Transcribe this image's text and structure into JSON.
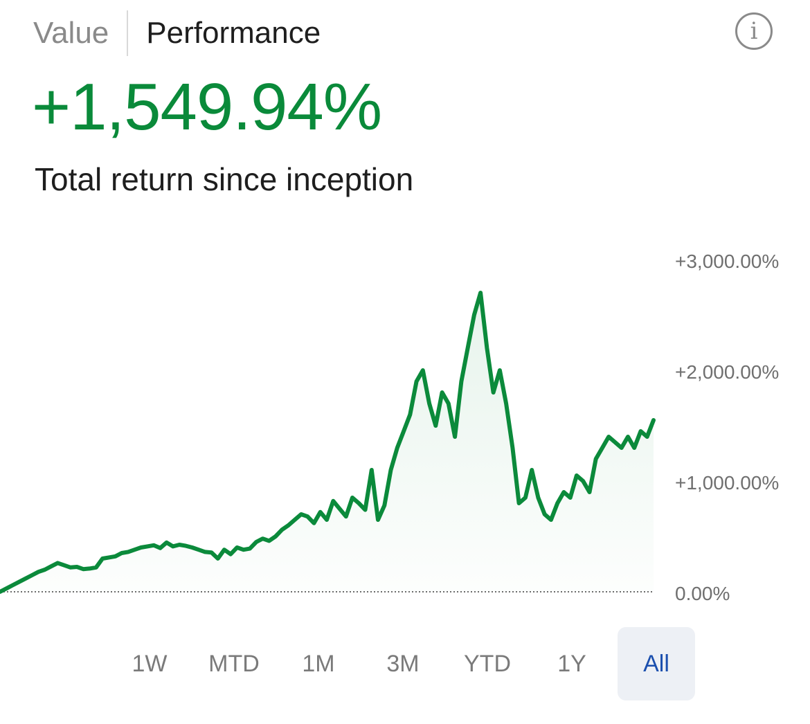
{
  "tabs": {
    "value": "Value",
    "performance": "Performance",
    "active": "Performance"
  },
  "info_icon": {
    "glyph": "i",
    "name": "info-icon"
  },
  "summary": {
    "total_return": "+1,549.94%",
    "label": "Total return since inception"
  },
  "colors": {
    "positive": "#0a8a3a",
    "line": "#0b8a3b",
    "active_range_bg": "#edf0f5",
    "active_range_text": "#1b4fae"
  },
  "ranges": [
    {
      "label": "1W"
    },
    {
      "label": "MTD"
    },
    {
      "label": "1M"
    },
    {
      "label": "3M"
    },
    {
      "label": "YTD"
    },
    {
      "label": "1Y"
    },
    {
      "label": "All"
    }
  ],
  "selected_range": "All",
  "chart_data": {
    "type": "area",
    "title": "",
    "xlabel": "",
    "ylabel": "",
    "ylim": [
      0,
      3000
    ],
    "y_ticks": [
      {
        "value": 3000,
        "label": "+3,000.00%"
      },
      {
        "value": 2000,
        "label": "+2,000.00%"
      },
      {
        "value": 1000,
        "label": "+1,000.00%"
      },
      {
        "value": 0,
        "label": "0.00%"
      }
    ],
    "baseline": 0,
    "grid": false,
    "series": [
      {
        "values": [
          0,
          30,
          60,
          90,
          120,
          150,
          180,
          200,
          230,
          260,
          240,
          220,
          225,
          205,
          210,
          220,
          300,
          310,
          320,
          350,
          360,
          380,
          400,
          410,
          420,
          395,
          445,
          410,
          425,
          415,
          400,
          380,
          360,
          355,
          300,
          380,
          340,
          400,
          380,
          390,
          450,
          480,
          460,
          500,
          560,
          600,
          650,
          700,
          680,
          620,
          720,
          650,
          820,
          750,
          680,
          850,
          800,
          740,
          1100,
          650,
          780,
          1100,
          1300,
          1450,
          1600,
          1900,
          2000,
          1700,
          1500,
          1800,
          1700,
          1400,
          1900,
          2200,
          2500,
          2700,
          2200,
          1800,
          2000,
          1700,
          1300,
          800,
          850,
          1100,
          850,
          700,
          650,
          800,
          900,
          850,
          1050,
          1000,
          900,
          1200,
          1300,
          1400,
          1350,
          1300,
          1400,
          1300,
          1450,
          1400,
          1550
        ]
      }
    ]
  }
}
